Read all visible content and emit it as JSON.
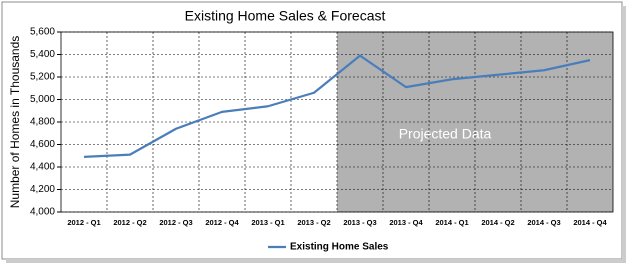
{
  "chart_data": {
    "type": "line",
    "title": "Existing Home Sales & Forecast",
    "y_label": "Number of  Homes  in Thousands",
    "annotation": "Projected  Data",
    "shade": {
      "from": "2013 - Q3",
      "color": "#b2b2b2"
    },
    "categories": [
      "2012 - Q1",
      "2012 - Q2",
      "2012 - Q3",
      "2012 - Q4",
      "2013 - Q1",
      "2013 - Q2",
      "2013 - Q3",
      "2013 - Q4",
      "2014 - Q1",
      "2014 - Q2",
      "2014 - Q3",
      "2014 - Q4"
    ],
    "series": [
      {
        "name": "Existing Home Sales",
        "color": "#4a7ebb",
        "values": [
          4490,
          4510,
          4740,
          4890,
          4940,
          5060,
          5390,
          5110,
          5180,
          5220,
          5260,
          5350
        ]
      }
    ],
    "ylim": [
      4000,
      5600
    ],
    "yticks": [
      {
        "value": 4000,
        "label": "4,000"
      },
      {
        "value": 4200,
        "label": "4,200"
      },
      {
        "value": 4400,
        "label": "4,400"
      },
      {
        "value": 4600,
        "label": "4,600"
      },
      {
        "value": 4800,
        "label": "4,800"
      },
      {
        "value": 5000,
        "label": "5,000"
      },
      {
        "value": 5200,
        "label": "5,200"
      },
      {
        "value": 5400,
        "label": "5,400"
      },
      {
        "value": 5600,
        "label": "5,600"
      }
    ],
    "grid": true,
    "legend": "bottom"
  }
}
